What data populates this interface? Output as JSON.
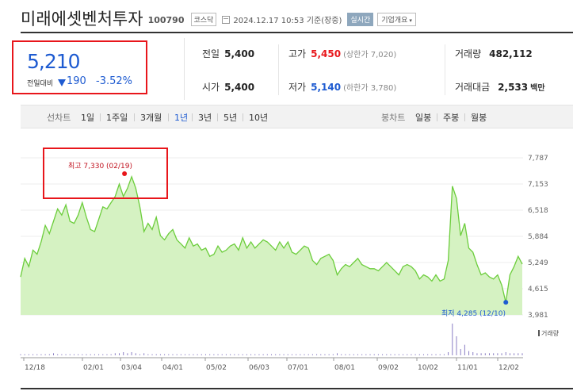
{
  "header": {
    "name": "미래에셋벤처투자",
    "code": "100790",
    "market": "코스닥",
    "datetime": "2024.12.17 10:53",
    "session": "기준(장중)",
    "realtime_label": "실시간",
    "company_info_label": "기업개요"
  },
  "price": {
    "current": "5,210",
    "change_label": "전일대비",
    "change_value": "190",
    "change_pct": "-3.52%",
    "direction_color": "#1e5bd1"
  },
  "stats": {
    "prev_close_label": "전일",
    "prev_close": "5,400",
    "high_label": "고가",
    "high": "5,450",
    "upper_limit": "(상한가 7,020)",
    "volume_label": "거래량",
    "volume": "482,112",
    "open_label": "시가",
    "open": "5,400",
    "low_label": "저가",
    "low": "5,140",
    "lower_limit": "(하한가 3,780)",
    "amount_label": "거래대금",
    "amount": "2,533",
    "amount_unit": "백만"
  },
  "period_bar": {
    "line_label": "선차트",
    "line_items": [
      "1일",
      "1주일",
      "3개월",
      "1년",
      "3년",
      "5년",
      "10년"
    ],
    "active": "1년",
    "candle_label": "봉차트",
    "candle_items": [
      "일봉",
      "주봉",
      "월봉"
    ]
  },
  "chart_data": {
    "type": "area",
    "y_ticks": [
      "7,787",
      "7,153",
      "6,518",
      "5,884",
      "5,249",
      "4,615",
      "3,981"
    ],
    "ylim": [
      3981,
      7787
    ],
    "x_labels": [
      "12/18",
      "02/01",
      "03/04",
      "04/01",
      "05/02",
      "06/03",
      "07/01",
      "08/01",
      "09/02",
      "10/02",
      "11/01",
      "12/02"
    ],
    "high_annotation": "최고 7,330 (02/19)",
    "low_annotation": "최저 4,285 (12/10)",
    "volume_label": "거래량",
    "line_color": "#6ccd3c",
    "fill_color": "#d5f2c2",
    "values": [
      4900,
      5350,
      5150,
      5550,
      5450,
      5750,
      6150,
      5950,
      6250,
      6550,
      6400,
      6650,
      6250,
      6200,
      6400,
      6700,
      6350,
      6050,
      6000,
      6300,
      6600,
      6550,
      6700,
      6850,
      7150,
      6850,
      7050,
      7330,
      7050,
      6600,
      6000,
      6200,
      6050,
      6350,
      5900,
      5800,
      5950,
      6050,
      5800,
      5700,
      5600,
      5850,
      5650,
      5700,
      5550,
      5600,
      5400,
      5450,
      5650,
      5500,
      5550,
      5650,
      5700,
      5550,
      5850,
      5600,
      5750,
      5600,
      5700,
      5800,
      5750,
      5650,
      5550,
      5750,
      5600,
      5750,
      5500,
      5450,
      5550,
      5650,
      5600,
      5300,
      5200,
      5350,
      5400,
      5450,
      5300,
      4950,
      5100,
      5200,
      5150,
      5250,
      5350,
      5200,
      5150,
      5100,
      5100,
      5050,
      5150,
      5250,
      5150,
      5050,
      4950,
      5150,
      5200,
      5150,
      5050,
      4850,
      4950,
      4900,
      4800,
      4950,
      4800,
      4850,
      5300,
      7100,
      6800,
      5900,
      6200,
      5600,
      5500,
      5200,
      4950,
      5000,
      4900,
      4850,
      4950,
      4700,
      4285,
      4950,
      5150,
      5400,
      5210
    ],
    "volume": [
      1,
      1,
      1,
      1,
      1,
      1,
      1,
      1,
      2,
      1,
      1,
      1,
      1,
      1,
      1,
      1,
      1,
      1,
      1,
      1,
      1,
      1,
      1,
      2,
      2,
      3,
      2,
      3,
      2,
      1,
      2,
      1,
      1,
      1,
      1,
      1,
      1,
      1,
      1,
      1,
      1,
      1,
      1,
      1,
      1,
      1,
      1,
      1,
      1,
      1,
      1,
      1,
      1,
      1,
      1,
      1,
      1,
      1,
      1,
      1,
      1,
      1,
      1,
      1,
      1,
      1,
      1,
      1,
      1,
      1,
      1,
      1,
      1,
      1,
      1,
      1,
      1,
      2,
      1,
      1,
      1,
      1,
      1,
      1,
      1,
      1,
      1,
      1,
      1,
      1,
      1,
      1,
      1,
      1,
      1,
      1,
      1,
      1,
      1,
      1,
      1,
      1,
      1,
      1,
      3,
      30,
      18,
      6,
      10,
      4,
      3,
      2,
      2,
      2,
      2,
      2,
      2,
      2,
      3,
      2,
      2,
      2,
      2
    ]
  }
}
